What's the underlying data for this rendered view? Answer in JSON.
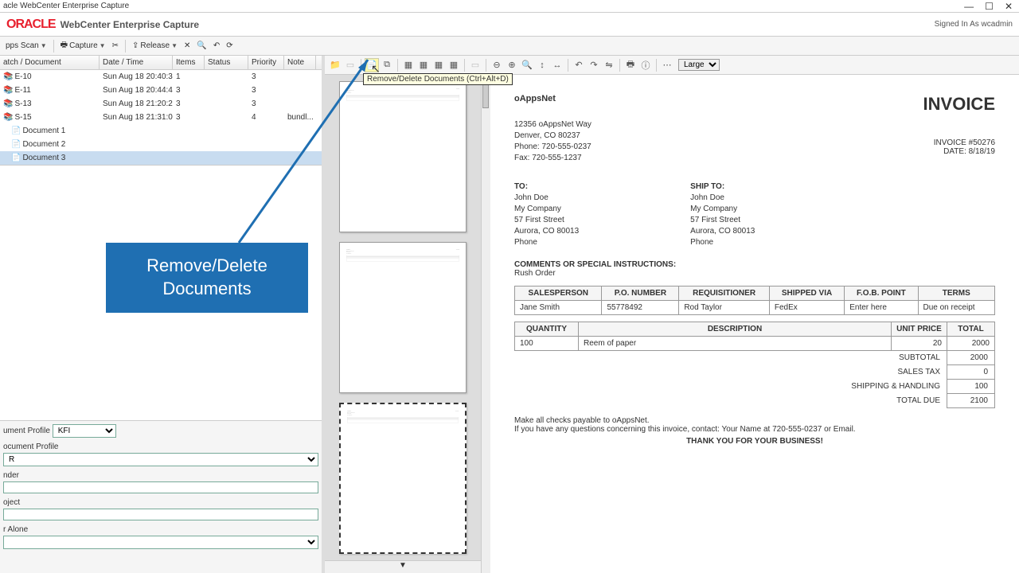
{
  "window": {
    "title": "acle WebCenter Enterprise Capture"
  },
  "header": {
    "logo": "ORACLE",
    "app": "WebCenter Enterprise Capture",
    "signin": "Signed In As wcadmin"
  },
  "mainToolbar": {
    "scan": "pps Scan",
    "capture": "Capture",
    "release": "Release"
  },
  "columns": {
    "doc": "atch / Document",
    "date": "Date / Time",
    "items": "Items",
    "status": "Status",
    "priority": "Priority",
    "note": "Note"
  },
  "batches": [
    {
      "name": "E-10",
      "date": "Sun Aug 18 20:40:39 ...",
      "items": "1",
      "priority": "3",
      "note": ""
    },
    {
      "name": "E-11",
      "date": "Sun Aug 18 20:44:48 ...",
      "items": "3",
      "priority": "3",
      "note": ""
    },
    {
      "name": "S-13",
      "date": "Sun Aug 18 21:20:28 ...",
      "items": "3",
      "priority": "3",
      "note": ""
    },
    {
      "name": "S-15",
      "date": "Sun Aug 18 21:31:06 ...",
      "items": "3",
      "priority": "4",
      "note": "bundl..."
    }
  ],
  "docs": [
    {
      "name": "Document 1"
    },
    {
      "name": "Document 2"
    },
    {
      "name": "Document 3"
    }
  ],
  "metadata": {
    "profileLabel": "ument Profile",
    "profileValue": "KFI",
    "docProfileLabel": "ocument Profile",
    "docProfileValue": "R",
    "venderLabel": "nder",
    "subjectLabel": "oject",
    "aloneLabel": "r Alone"
  },
  "callout": {
    "line1": "Remove/Delete",
    "line2": "Documents"
  },
  "tooltip": "Remove/Delete Documents (Ctrl+Alt+D)",
  "zoom": "Large",
  "invoice": {
    "company": "oAppsNet",
    "title": "INVOICE",
    "number": "INVOICE #50276",
    "date": "DATE: 8/18/19",
    "addr": [
      "12356 oAppsNet Way",
      "Denver, CO 80237",
      "Phone: 720-555-0237",
      "Fax: 720-555-1237"
    ],
    "toLabel": "TO:",
    "shipLabel": "SHIP TO:",
    "to": [
      "John Doe",
      "My Company",
      "57 First Street",
      "Aurora, CO 80013",
      "Phone"
    ],
    "ship": [
      "John Doe",
      "My Company",
      "57 First Street",
      "Aurora, CO 80013",
      "Phone"
    ],
    "commentsLabel": "COMMENTS OR SPECIAL INSTRUCTIONS:",
    "comments": "Rush Order",
    "headers1": [
      "SALESPERSON",
      "P.O. NUMBER",
      "REQUISITIONER",
      "SHIPPED VIA",
      "F.O.B. POINT",
      "TERMS"
    ],
    "row1": [
      "Jane Smith",
      "55778492",
      "Rod Taylor",
      "FedEx",
      "Enter here",
      "Due on receipt"
    ],
    "headers2": [
      "QUANTITY",
      "DESCRIPTION",
      "UNIT PRICE",
      "TOTAL"
    ],
    "row2": [
      "100",
      "Reem of paper",
      "20",
      "2000"
    ],
    "totals": [
      {
        "label": "SUBTOTAL",
        "value": "2000"
      },
      {
        "label": "SALES TAX",
        "value": "0"
      },
      {
        "label": "SHIPPING & HANDLING",
        "value": "100"
      },
      {
        "label": "TOTAL DUE",
        "value": "2100"
      }
    ],
    "footer1": "Make all checks payable to oAppsNet.",
    "footer2": "If you have any questions concerning this invoice, contact: Your Name at 720-555-0237 or Email.",
    "thank": "THANK YOU FOR YOUR BUSINESS!"
  }
}
